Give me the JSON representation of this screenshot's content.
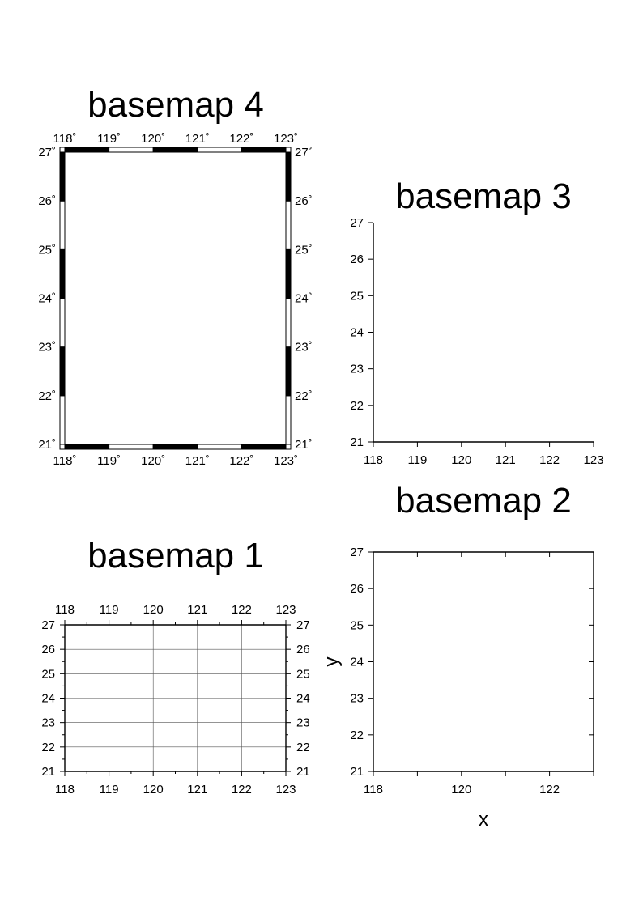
{
  "panels": [
    {
      "title": "basemap 4",
      "frame_style": "fancy",
      "x_ticks": [
        "118˚",
        "119˚",
        "120˚",
        "121˚",
        "122˚",
        "123˚"
      ],
      "y_ticks": [
        "21˚",
        "22˚",
        "23˚",
        "24˚",
        "25˚",
        "26˚",
        "27˚"
      ],
      "x_range": [
        118,
        123
      ],
      "y_range": [
        21,
        27
      ],
      "annotated_sides": [
        "west",
        "east",
        "south",
        "north"
      ],
      "grid": false,
      "minor_ticks": false
    },
    {
      "title": "basemap 3",
      "frame_style": "plain",
      "x_ticks": [
        "118",
        "119",
        "120",
        "121",
        "122",
        "123"
      ],
      "y_ticks": [
        "21",
        "22",
        "23",
        "24",
        "25",
        "26",
        "27"
      ],
      "x_range": [
        118,
        123
      ],
      "y_range": [
        21,
        27
      ],
      "annotated_sides": [
        "west",
        "south"
      ],
      "drawn_sides": [
        "west",
        "south"
      ],
      "grid": false,
      "minor_ticks": false
    },
    {
      "title": "basemap 2",
      "frame_style": "plain",
      "x_ticks": [
        "118",
        "120",
        "122"
      ],
      "y_ticks": [
        "21",
        "22",
        "23",
        "24",
        "25",
        "26",
        "27"
      ],
      "x_range": [
        118,
        123
      ],
      "y_range": [
        21,
        27
      ],
      "annotated_sides": [
        "west",
        "south"
      ],
      "drawn_sides": [
        "west",
        "south",
        "east",
        "north"
      ],
      "xlabel": "x",
      "ylabel": "y",
      "grid": false,
      "minor_ticks": false
    },
    {
      "title": "basemap 1",
      "frame_style": "plain",
      "x_ticks": [
        "118",
        "119",
        "120",
        "121",
        "122",
        "123"
      ],
      "y_ticks": [
        "21",
        "22",
        "23",
        "24",
        "25",
        "26",
        "27"
      ],
      "x_range": [
        118,
        123
      ],
      "y_range": [
        21,
        27
      ],
      "annotated_sides": [
        "west",
        "east",
        "south",
        "north"
      ],
      "drawn_sides": [
        "west",
        "south",
        "east",
        "north"
      ],
      "grid": true,
      "grid_interval": 1,
      "minor_ticks": true,
      "minor_tick_interval": 0.5
    }
  ]
}
